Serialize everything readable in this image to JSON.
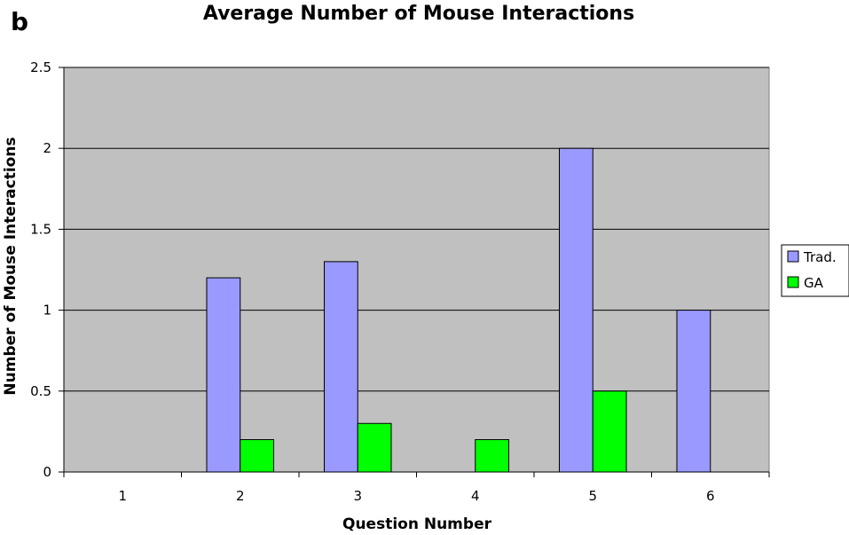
{
  "panel_letter": "b",
  "chart_data": {
    "type": "bar",
    "title": "Average Number of Mouse Interactions",
    "xlabel": "Question Number",
    "ylabel": "Number of Mouse Interactions",
    "categories": [
      "1",
      "2",
      "3",
      "4",
      "5",
      "6"
    ],
    "ylim": [
      0,
      2.5
    ],
    "yticks": [
      0,
      0.5,
      1,
      1.5,
      2,
      2.5
    ],
    "ytick_labels": [
      "0",
      "0.5",
      "1",
      "1.5",
      "2",
      "2.5"
    ],
    "grid": true,
    "legend_position": "right",
    "series": [
      {
        "name": "Trad.",
        "color": "#9999ff",
        "values": [
          0,
          1.2,
          1.3,
          0,
          2.0,
          1.0
        ]
      },
      {
        "name": "GA",
        "color": "#00ff00",
        "values": [
          0,
          0.2,
          0.3,
          0.2,
          0.5,
          0
        ]
      }
    ],
    "plot_background": "#c0c0c0"
  }
}
